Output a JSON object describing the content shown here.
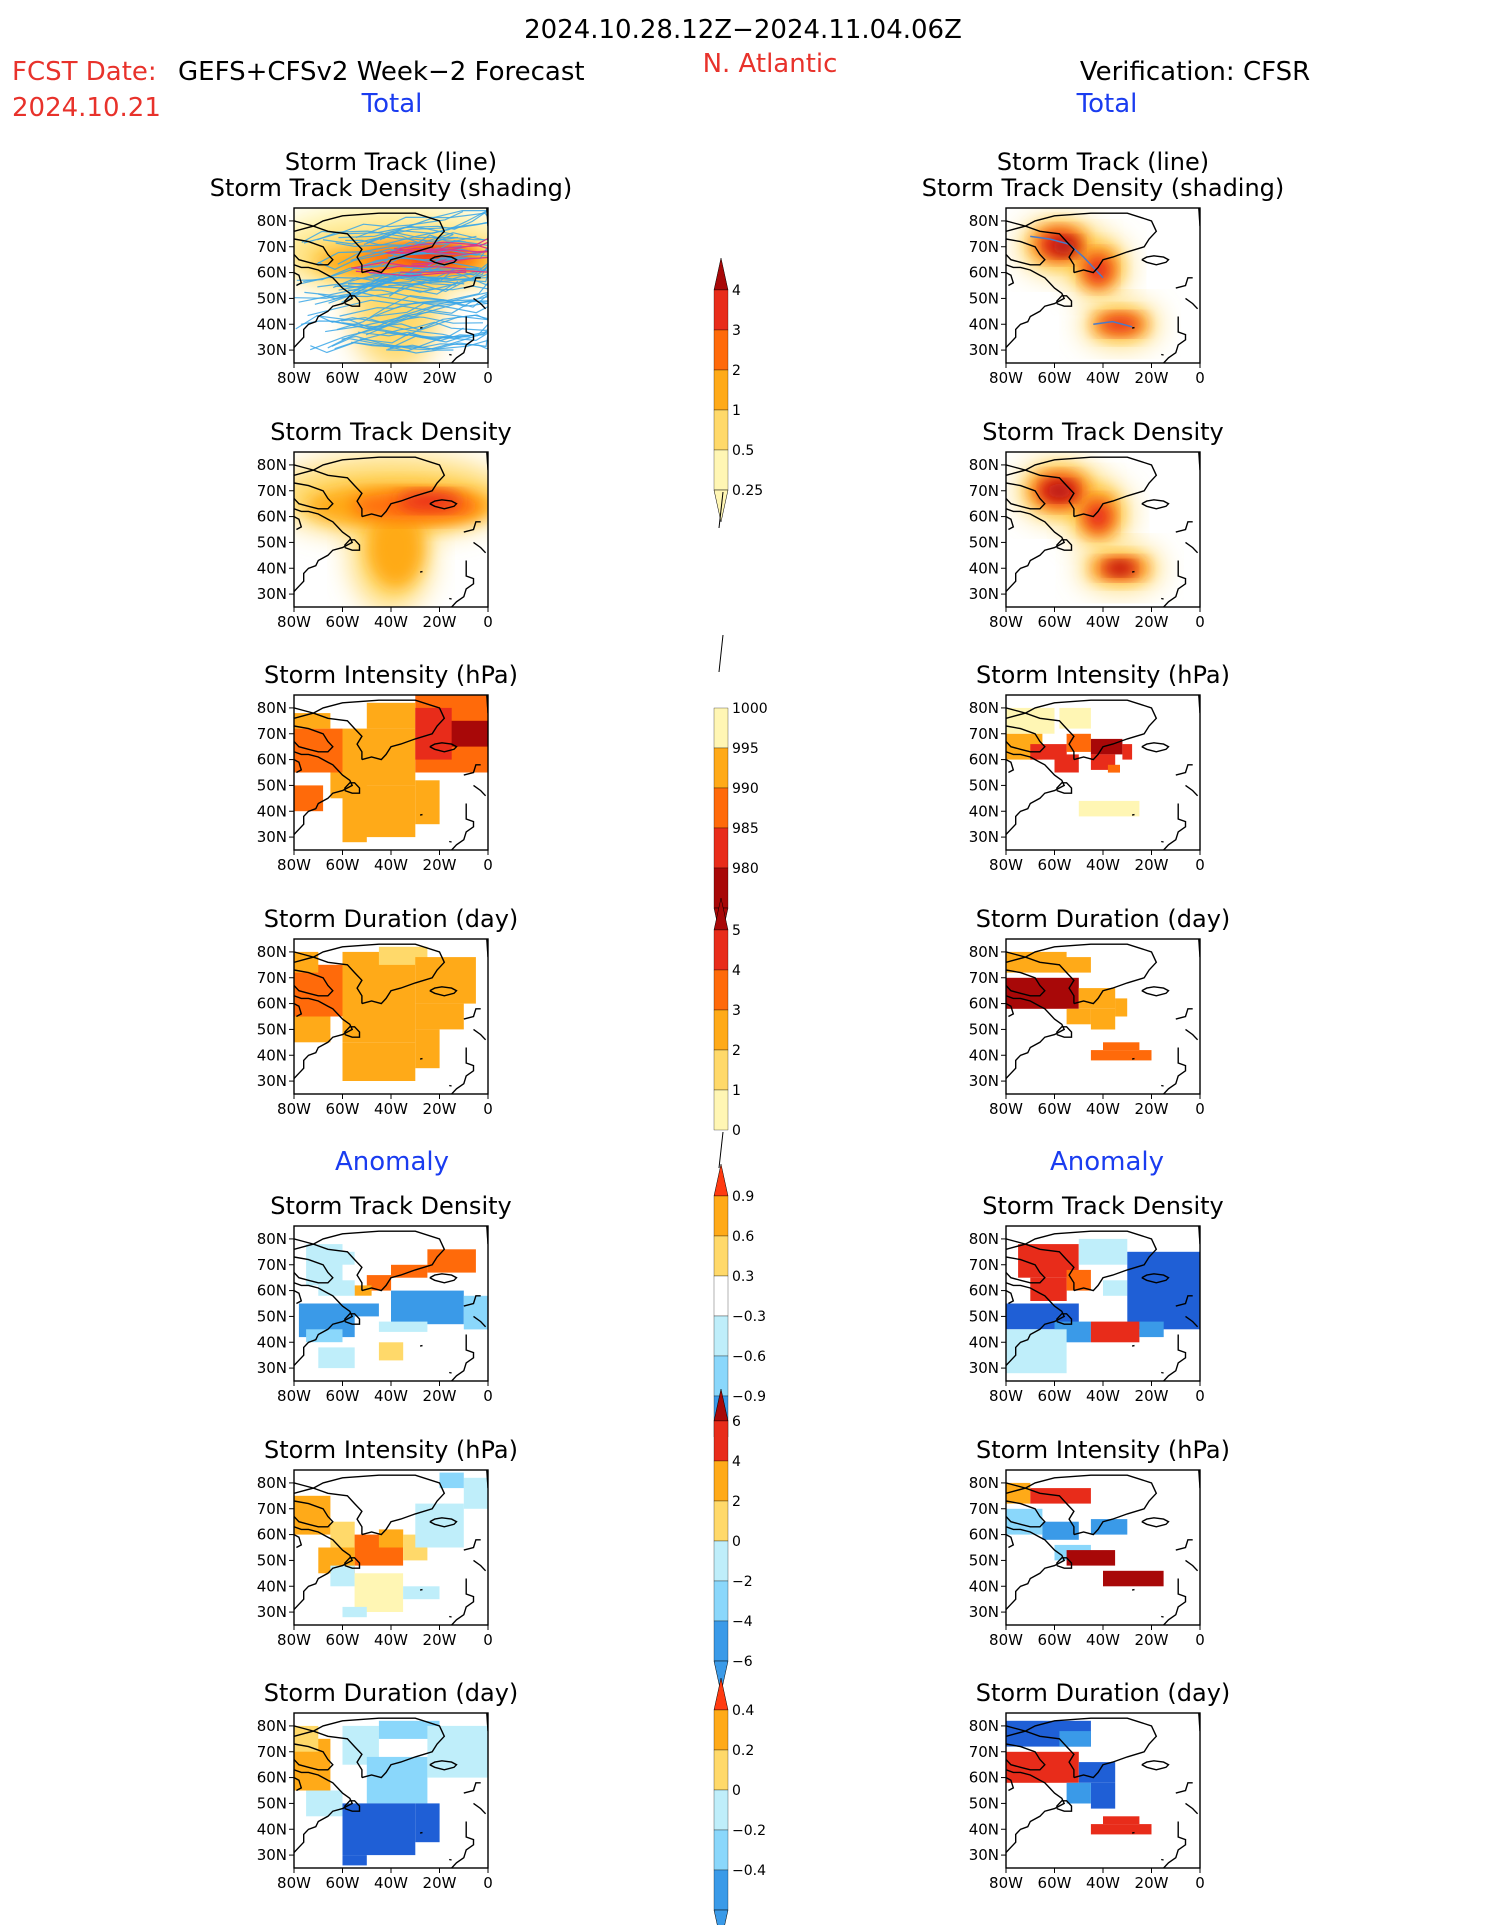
{
  "header": {
    "date_range": "2024.10.28.12Z−2024.11.04.06Z",
    "fcst_label": "FCST Date:",
    "fcst_date": "2024.10.21",
    "model": "GEFS+CFSv2 Week−2 Forecast",
    "region": "N. Atlantic",
    "verification": "Verification: CFSR",
    "total_left": "Total",
    "total_right": "Total",
    "anomaly_left": "Anomaly",
    "anomaly_right": "Anomaly"
  },
  "colors": {
    "red_text": "#e8322b",
    "blue_text": "#1a3cf0",
    "warm": [
      "#fff6b4",
      "#ffd96a",
      "#ffaa18",
      "#ff6a0a",
      "#e82c1a",
      "#a80808"
    ],
    "cool": [
      "#bfeefa",
      "#8ad7fb",
      "#3a9ae8",
      "#1f5fd6"
    ]
  },
  "chart_data": {
    "type": "heatmap",
    "map": {
      "lon_ticks": [
        "80W",
        "60W",
        "40W",
        "20W",
        "0"
      ],
      "lat_ticks": [
        "80N",
        "70N",
        "60N",
        "50N",
        "40N",
        "30N"
      ],
      "lon_range": [
        -80,
        0
      ],
      "lat_range": [
        25,
        85
      ]
    },
    "panels": [
      {
        "id": "fc-track",
        "column": "forecast",
        "title": [
          "Storm Track (line)",
          "Storm Track Density (shading)"
        ],
        "field": "storm track density",
        "scale": "density"
      },
      {
        "id": "vf-track",
        "column": "verification",
        "title": [
          "Storm Track (line)",
          "Storm Track Density (shading)"
        ],
        "field": "storm track density",
        "scale": "density"
      },
      {
        "id": "fc-density",
        "column": "forecast",
        "title": [
          "Storm Track Density"
        ],
        "field": "storm track density",
        "scale": "density"
      },
      {
        "id": "vf-density",
        "column": "verification",
        "title": [
          "Storm Track Density"
        ],
        "field": "storm track density",
        "scale": "density"
      },
      {
        "id": "fc-intensity",
        "column": "forecast",
        "title": [
          "Storm Intensity (hPa)"
        ],
        "field": "storm intensity",
        "scale": "intensity"
      },
      {
        "id": "vf-intensity",
        "column": "verification",
        "title": [
          "Storm Intensity (hPa)"
        ],
        "field": "storm intensity",
        "scale": "intensity"
      },
      {
        "id": "fc-duration",
        "column": "forecast",
        "title": [
          "Storm Duration (day)"
        ],
        "field": "storm duration",
        "scale": "duration"
      },
      {
        "id": "vf-duration",
        "column": "verification",
        "title": [
          "Storm Duration (day)"
        ],
        "field": "storm duration",
        "scale": "duration"
      },
      {
        "id": "fc-density-anom",
        "column": "forecast",
        "title": [
          "Storm Track Density"
        ],
        "field": "storm track density anomaly",
        "scale": "density_anom"
      },
      {
        "id": "vf-density-anom",
        "column": "verification",
        "title": [
          "Storm Track Density"
        ],
        "field": "storm track density anomaly",
        "scale": "density_anom"
      },
      {
        "id": "fc-intensity-anom",
        "column": "forecast",
        "title": [
          "Storm Intensity (hPa)"
        ],
        "field": "storm intensity anomaly",
        "scale": "intensity_anom"
      },
      {
        "id": "vf-intensity-anom",
        "column": "verification",
        "title": [
          "Storm Intensity (hPa)"
        ],
        "field": "storm intensity anomaly",
        "scale": "intensity_anom"
      },
      {
        "id": "fc-duration-anom",
        "column": "forecast",
        "title": [
          "Storm Duration (day)"
        ],
        "field": "storm duration anomaly",
        "scale": "duration_anom"
      },
      {
        "id": "vf-duration-anom",
        "column": "verification",
        "title": [
          "Storm Duration (day)"
        ],
        "field": "storm duration anomaly",
        "scale": "duration_anom"
      }
    ],
    "colorbars": [
      {
        "id": "density",
        "labels": [
          "4",
          "3",
          "2",
          "1",
          "0.5",
          "0.25"
        ],
        "colors": [
          "#a80808",
          "#e82c1a",
          "#ff6a0a",
          "#ffaa18",
          "#ffd96a",
          "#fff6b4"
        ]
      },
      {
        "id": "intensity",
        "labels": [
          "1000",
          "995",
          "990",
          "985",
          "980"
        ],
        "colors": [
          "#fff6b4",
          "#ffaa18",
          "#ff6a0a",
          "#e82c1a",
          "#a80808"
        ]
      },
      {
        "id": "duration",
        "labels": [
          "5",
          "4",
          "3",
          "2",
          "1",
          "0"
        ],
        "colors": [
          "#a80808",
          "#e82c1a",
          "#ff6a0a",
          "#ffaa18",
          "#ffd96a",
          "#fff6b4"
        ]
      },
      {
        "id": "density_anom",
        "labels": [
          "0.9",
          "0.6",
          "0.3",
          "−0.3",
          "−0.6",
          "−0.9"
        ],
        "colors": [
          "#ff3a10",
          "#ffaa18",
          "#ffd96a",
          "#ffffff",
          "#bfeefa",
          "#8ad7fb",
          "#3a9ae8"
        ]
      },
      {
        "id": "intensity_anom",
        "labels": [
          "6",
          "4",
          "2",
          "0",
          "−2",
          "−4",
          "−6"
        ],
        "colors": [
          "#a80808",
          "#e82c1a",
          "#ffaa18",
          "#ffd96a",
          "#bfeefa",
          "#8ad7fb",
          "#3a9ae8"
        ]
      },
      {
        "id": "duration_anom",
        "labels": [
          "0.4",
          "0.2",
          "0",
          "−0.2",
          "−0.4"
        ],
        "colors": [
          "#ff3a10",
          "#ffaa18",
          "#ffd96a",
          "#bfeefa",
          "#8ad7fb",
          "#3a9ae8"
        ]
      }
    ]
  }
}
